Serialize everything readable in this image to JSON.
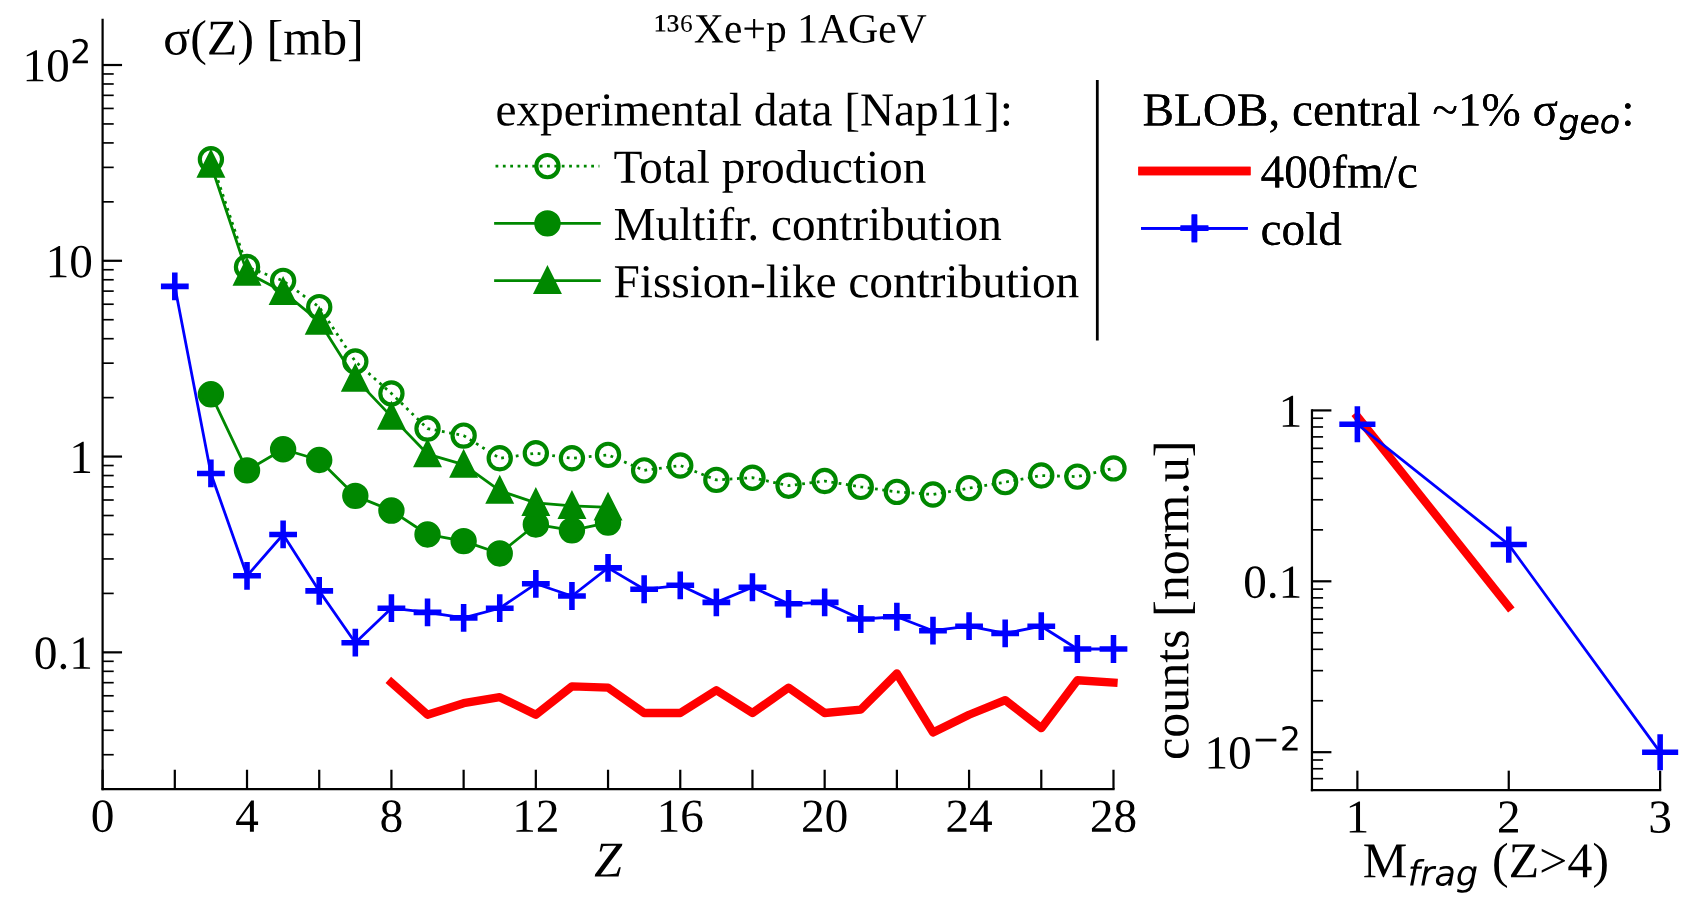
{
  "chart_data": [
    {
      "type": "line",
      "title": "¹³⁶Xe+p 1AGeV",
      "xlabel": "Z",
      "ylabel": "σ(Z) [mb]",
      "legend_title": [
        "experimental data [Nap11]:",
        "BLOB, central ~1% σ$_{geo}$:"
      ],
      "log": true,
      "legend": "top right",
      "xlim": [
        0,
        28
      ],
      "ylim": [
        0.02,
        170
      ],
      "xticks": [
        0,
        {
          "value": 2,
          "label": null
        },
        4,
        {
          "value": 6,
          "label": null
        },
        8,
        {
          "value": 10,
          "label": null
        },
        12,
        {
          "value": 14,
          "label": null
        },
        16,
        {
          "value": 18,
          "label": null
        },
        20,
        {
          "value": 22,
          "label": null
        },
        24,
        {
          "value": 26,
          "label": null
        },
        28
      ],
      "yticks": [
        {
          "value": 100,
          "label": "10$^{2}$"
        },
        10,
        1,
        0.1
      ],
      "series": [
        {
          "name": "Total production",
          "color": "#008800",
          "marker": "circle",
          "line_style": "dotted",
          "x": [
            3,
            4,
            5,
            6,
            7,
            8,
            9,
            10,
            11,
            12,
            13,
            14,
            15,
            16,
            17,
            18,
            19,
            20,
            21,
            22,
            23,
            24,
            25,
            26,
            27,
            28
          ],
          "values": [
            33,
            9.3,
            7.9,
            5.8,
            3.06,
            2.1,
            1.39,
            1.28,
            0.98,
            1.04,
            0.98,
            1.02,
            0.85,
            0.9,
            0.76,
            0.78,
            0.71,
            0.75,
            0.7,
            0.66,
            0.64,
            0.69,
            0.74,
            0.8,
            0.79,
            0.87
          ]
        },
        {
          "name": "Multifr. contribution",
          "color": "#008800",
          "marker": "circle",
          "line_style": "solid",
          "x": [
            3,
            4,
            5,
            6,
            7,
            8,
            9,
            10,
            11,
            12,
            13,
            14
          ],
          "values": [
            2.08,
            0.85,
            1.09,
            0.96,
            0.63,
            0.53,
            0.4,
            0.37,
            0.32,
            0.45,
            0.42,
            0.46
          ]
        },
        {
          "name": "Fission-like contribution",
          "color": "#008800",
          "marker": "triangle",
          "line_style": "solid",
          "x": [
            3,
            4,
            5,
            6,
            7,
            8,
            9,
            10,
            11,
            12,
            13,
            14
          ],
          "values": [
            31,
            8.7,
            6.95,
            4.9,
            2.5,
            1.6,
            1.03,
            0.91,
            0.67,
            0.58,
            0.56,
            0.55
          ]
        },
        {
          "name": "400fm/c",
          "color": "#ff0000",
          "marker": "none",
          "line_style": "solid",
          "x": [
            8,
            9,
            10,
            11,
            12,
            13,
            14,
            15,
            16,
            17,
            18,
            19,
            20,
            21,
            22,
            23,
            24,
            25,
            26,
            27,
            28
          ],
          "values": [
            0.07,
            0.048,
            0.055,
            0.059,
            0.048,
            0.067,
            0.066,
            0.049,
            0.049,
            0.064,
            0.049,
            0.066,
            0.049,
            0.051,
            0.078,
            0.039,
            0.048,
            0.057,
            0.041,
            0.072,
            0.07
          ]
        },
        {
          "name": "cold",
          "color": "#0000ff",
          "marker": "cross",
          "line_style": "solid",
          "x": [
            2,
            3,
            4,
            5,
            6,
            7,
            8,
            9,
            10,
            11,
            12,
            13,
            14,
            15,
            16,
            17,
            18,
            19,
            20,
            21,
            22,
            23,
            24,
            25,
            26,
            27,
            28
          ],
          "values": [
            7.4,
            0.82,
            0.246,
            0.4,
            0.206,
            0.112,
            0.168,
            0.16,
            0.15,
            0.168,
            0.224,
            0.194,
            0.27,
            0.21,
            0.22,
            0.18,
            0.215,
            0.177,
            0.18,
            0.148,
            0.152,
            0.129,
            0.136,
            0.125,
            0.136,
            0.104,
            0.104
          ]
        }
      ]
    },
    {
      "type": "line",
      "xlabel": "M$_{frag}$ (Z>4)",
      "ylabel": "counts [norm.u]",
      "log": true,
      "xlim": [
        0.7,
        3
      ],
      "ylim": [
        0.006,
        1
      ],
      "xticks": [
        1,
        2,
        3
      ],
      "yticks": [
        1,
        0.1,
        {
          "value": 0.01,
          "label": "10$^{−2}$"
        }
      ],
      "series": [
        {
          "color": "#ff0000",
          "marker": "none",
          "line_style": "solid",
          "x": [
            1,
            2
          ],
          "values": [
            0.92,
            0.071
          ]
        },
        {
          "color": "#0000ff",
          "marker": "cross",
          "line_style": "solid",
          "x": [
            1,
            2,
            3
          ],
          "values": [
            0.83,
            0.164,
            0.01
          ]
        }
      ]
    }
  ]
}
